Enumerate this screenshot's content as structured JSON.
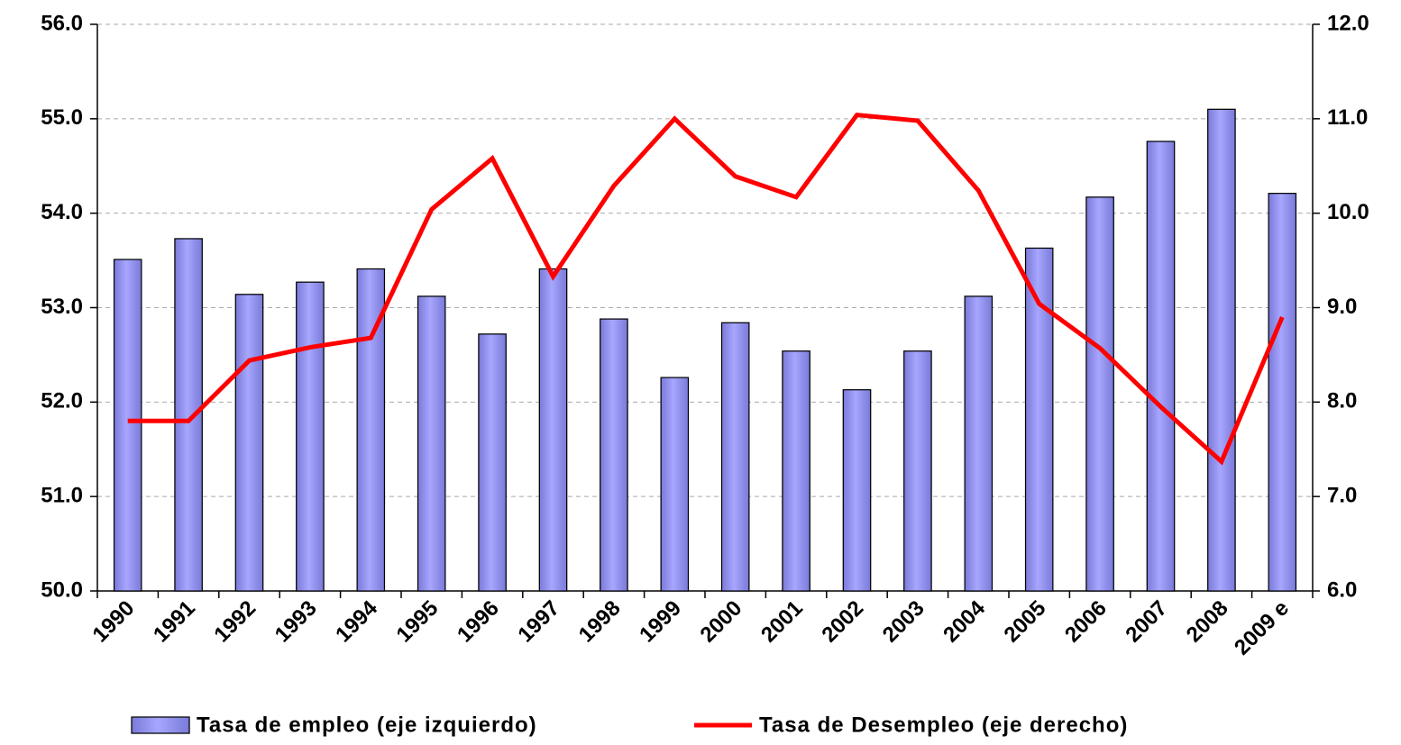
{
  "chart_data": {
    "type": "bar",
    "categories": [
      "1990",
      "1991",
      "1992",
      "1993",
      "1994",
      "1995",
      "1996",
      "1997",
      "1998",
      "1999",
      "2000",
      "2001",
      "2002",
      "2003",
      "2004",
      "2005",
      "2006",
      "2007",
      "2008",
      "2009 e"
    ],
    "series": [
      {
        "name": "Tasa de empleo (eje izquierdo)",
        "type": "bar",
        "color": "#9999ff",
        "axis": "y",
        "values": [
          53.51,
          53.73,
          53.14,
          53.27,
          53.41,
          53.12,
          52.72,
          53.41,
          52.88,
          52.26,
          52.84,
          52.54,
          52.13,
          52.54,
          53.12,
          53.63,
          54.17,
          54.76,
          55.1,
          54.21
        ]
      },
      {
        "name": "Tasa de Desempleo (eje derecho)",
        "type": "line",
        "color": "#ff0000",
        "axis": "y2",
        "values": [
          7.8,
          7.8,
          8.44,
          8.58,
          8.68,
          10.04,
          10.58,
          9.33,
          10.29,
          11.0,
          10.39,
          10.17,
          11.04,
          10.98,
          10.24,
          9.04,
          8.57,
          7.95,
          7.37,
          8.9
        ]
      }
    ],
    "ylim": [
      50,
      56
    ],
    "yticks": [
      {
        "value": 50,
        "label": "50.0"
      },
      {
        "value": 51,
        "label": "51.0"
      },
      {
        "value": 52,
        "label": "52.0"
      },
      {
        "value": 53,
        "label": "53.0"
      },
      {
        "value": 54,
        "label": "54.0"
      },
      {
        "value": 55,
        "label": "55.0"
      },
      {
        "value": 56,
        "label": "56.0"
      }
    ],
    "y2lim": [
      6,
      12
    ],
    "y2ticks": [
      {
        "value": 6,
        "label": "6.0"
      },
      {
        "value": 7,
        "label": "7.0"
      },
      {
        "value": 8,
        "label": "8.0"
      },
      {
        "value": 9,
        "label": "9.0"
      },
      {
        "value": 10,
        "label": "10.0"
      },
      {
        "value": 11,
        "label": "11.0"
      },
      {
        "value": 12,
        "label": "12.0"
      }
    ],
    "grid": true
  }
}
